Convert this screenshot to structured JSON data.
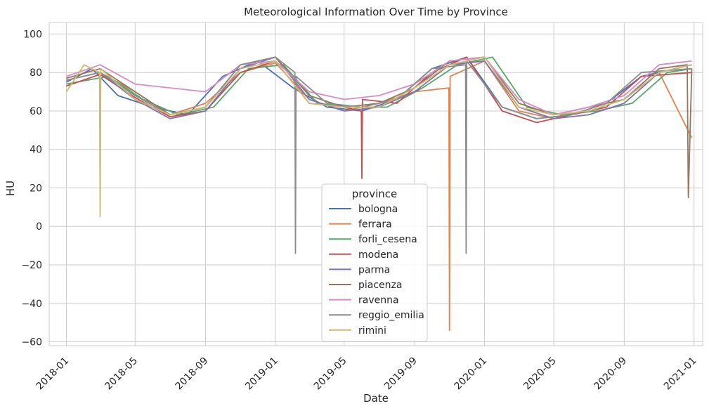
{
  "chart_data": {
    "type": "line",
    "title": "Meteorological Information Over Time by Province",
    "xlabel": "Date",
    "ylabel": "HU",
    "ylim": [
      -62,
      106
    ],
    "xlim": [
      "2017-12-02",
      "2021-01-16"
    ],
    "yticks": [
      -60,
      -40,
      -20,
      0,
      20,
      40,
      60,
      80,
      100
    ],
    "xticks": [
      "2018-01",
      "2018-05",
      "2018-09",
      "2019-01",
      "2019-05",
      "2019-09",
      "2020-01",
      "2020-05",
      "2020-09",
      "2021-01"
    ],
    "grid": true,
    "legend": {
      "title": "province",
      "placement": "lower-center"
    },
    "series": [
      {
        "name": "bologna",
        "color": "#4c72b0",
        "x": [
          "2018-01-01",
          "2018-02-15",
          "2018-04-01",
          "2018-06-01",
          "2018-08-01",
          "2018-10-01",
          "2018-12-01",
          "2019-02-01",
          "2019-04-01",
          "2019-06-01",
          "2019-08-01",
          "2019-10-01",
          "2019-12-01",
          "2020-02-01",
          "2020-04-01",
          "2020-06-01",
          "2020-08-01",
          "2020-10-01",
          "2020-12-28"
        ],
        "y": [
          75,
          82,
          68,
          62,
          58,
          78,
          86,
          72,
          62,
          60,
          66,
          82,
          88,
          62,
          56,
          58,
          64,
          78,
          84
        ]
      },
      {
        "name": "ferrara",
        "color": "#dd8452",
        "x": [
          "2018-01-01",
          "2018-03-01",
          "2018-05-01",
          "2018-07-01",
          "2018-09-01",
          "2018-11-01",
          "2019-01-01",
          "2019-03-01",
          "2019-05-01",
          "2019-07-01",
          "2019-09-01",
          "2019-10-31",
          "2019-11-01",
          "2019-11-02",
          "2020-01-01",
          "2020-03-01",
          "2020-05-01",
          "2020-07-01",
          "2020-09-01",
          "2020-11-01",
          "2020-12-28"
        ],
        "y": [
          76,
          80,
          70,
          58,
          64,
          80,
          85,
          66,
          60,
          64,
          70,
          72,
          -54,
          78,
          86,
          60,
          56,
          60,
          66,
          80,
          46
        ]
      },
      {
        "name": "forli_cesena",
        "color": "#55a868",
        "x": [
          "2018-01-01",
          "2018-03-15",
          "2018-05-15",
          "2018-07-15",
          "2018-09-15",
          "2018-11-15",
          "2019-01-15",
          "2019-03-15",
          "2019-05-15",
          "2019-07-15",
          "2019-09-15",
          "2019-11-15",
          "2020-01-15",
          "2020-03-15",
          "2020-05-15",
          "2020-07-15",
          "2020-09-15",
          "2020-11-15",
          "2020-12-28"
        ],
        "y": [
          74,
          78,
          66,
          58,
          62,
          82,
          84,
          64,
          62,
          62,
          72,
          84,
          88,
          62,
          58,
          60,
          64,
          80,
          82
        ]
      },
      {
        "name": "modena",
        "color": "#c44e52",
        "x": [
          "2018-01-01",
          "2018-03-01",
          "2018-05-01",
          "2018-07-01",
          "2018-09-01",
          "2018-11-01",
          "2019-01-01",
          "2019-03-01",
          "2019-05-01",
          "2019-05-31",
          "2019-06-01",
          "2019-06-02",
          "2019-08-01",
          "2019-10-01",
          "2019-12-01",
          "2020-02-01",
          "2020-04-01",
          "2020-06-01",
          "2020-08-01",
          "2020-10-01",
          "2020-12-28"
        ],
        "y": [
          73,
          79,
          67,
          57,
          60,
          80,
          86,
          64,
          62,
          60,
          25,
          66,
          64,
          80,
          88,
          60,
          54,
          58,
          62,
          78,
          80
        ]
      },
      {
        "name": "parma",
        "color": "#8172b3",
        "x": [
          "2018-01-01",
          "2018-03-01",
          "2018-05-01",
          "2018-07-01",
          "2018-09-01",
          "2018-11-01",
          "2019-01-01",
          "2019-03-01",
          "2019-05-01",
          "2019-07-01",
          "2019-09-01",
          "2019-11-01",
          "2020-01-01",
          "2020-03-01",
          "2020-05-01",
          "2020-07-01",
          "2020-09-01",
          "2020-11-01",
          "2020-12-28"
        ],
        "y": [
          76,
          80,
          66,
          56,
          60,
          82,
          88,
          66,
          60,
          62,
          70,
          84,
          86,
          62,
          56,
          58,
          64,
          80,
          84
        ]
      },
      {
        "name": "piacenza",
        "color": "#937860",
        "x": [
          "2018-01-01",
          "2018-03-01",
          "2018-05-01",
          "2018-07-01",
          "2018-09-01",
          "2018-11-01",
          "2019-01-01",
          "2019-03-01",
          "2019-05-01",
          "2019-07-01",
          "2019-09-01",
          "2019-11-01",
          "2020-01-01",
          "2020-03-01",
          "2020-05-01",
          "2020-07-01",
          "2020-09-01",
          "2020-11-01",
          "2020-12-20",
          "2020-12-22",
          "2020-12-28"
        ],
        "y": [
          77,
          82,
          70,
          58,
          62,
          84,
          88,
          68,
          62,
          64,
          72,
          86,
          88,
          64,
          58,
          62,
          66,
          82,
          84,
          15,
          82
        ]
      },
      {
        "name": "ravenna",
        "color": "#da8bc3",
        "x": [
          "2018-01-01",
          "2018-03-01",
          "2018-05-01",
          "2018-07-01",
          "2018-09-01",
          "2018-11-01",
          "2019-01-01",
          "2019-03-01",
          "2019-05-01",
          "2019-07-01",
          "2019-09-01",
          "2019-11-01",
          "2020-01-01",
          "2020-03-01",
          "2020-05-01",
          "2020-07-01",
          "2020-09-01",
          "2020-11-01",
          "2020-12-28"
        ],
        "y": [
          78,
          84,
          74,
          72,
          70,
          84,
          86,
          70,
          66,
          68,
          74,
          86,
          88,
          66,
          58,
          62,
          68,
          84,
          86
        ]
      },
      {
        "name": "reggio_emilia",
        "color": "#8c8c8c",
        "x": [
          "2018-01-01",
          "2018-03-01",
          "2018-05-01",
          "2018-07-01",
          "2018-09-01",
          "2018-11-01",
          "2019-01-01",
          "2019-02-04",
          "2019-02-05",
          "2019-02-06",
          "2019-04-01",
          "2019-06-01",
          "2019-08-01",
          "2019-10-01",
          "2019-11-29",
          "2019-11-30",
          "2019-12-01",
          "2020-02-01",
          "2020-04-01",
          "2020-06-01",
          "2020-08-01",
          "2020-10-01",
          "2020-12-28"
        ],
        "y": [
          76,
          80,
          68,
          58,
          62,
          84,
          88,
          80,
          -14,
          78,
          64,
          62,
          66,
          82,
          84,
          -14,
          86,
          62,
          56,
          58,
          64,
          80,
          82
        ]
      },
      {
        "name": "rimini",
        "color": "#ccb974",
        "x": [
          "2018-01-01",
          "2018-02-01",
          "2018-02-28",
          "2018-03-01",
          "2018-03-02",
          "2018-04-01",
          "2018-05-01",
          "2018-07-01",
          "2018-09-01",
          "2018-11-01",
          "2019-01-01",
          "2019-03-01",
          "2019-05-01",
          "2019-07-01",
          "2019-09-01",
          "2019-11-01",
          "2020-01-01",
          "2020-03-01",
          "2020-05-01",
          "2020-07-01",
          "2020-09-01",
          "2020-11-01",
          "2020-12-28"
        ],
        "y": [
          70,
          84,
          80,
          5,
          82,
          74,
          66,
          58,
          62,
          82,
          86,
          64,
          62,
          62,
          72,
          84,
          88,
          62,
          58,
          60,
          66,
          80,
          84
        ]
      }
    ]
  }
}
